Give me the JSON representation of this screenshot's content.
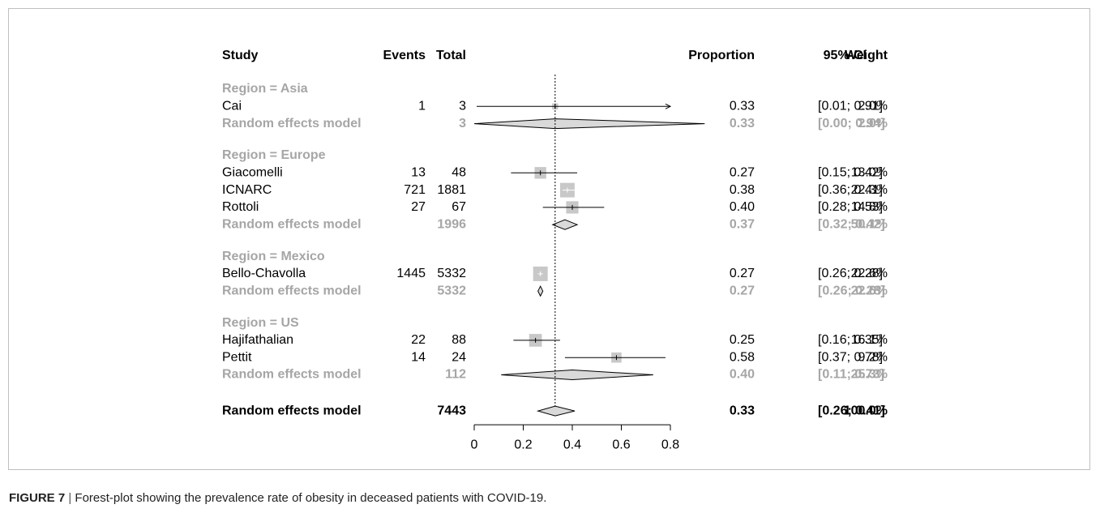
{
  "caption": {
    "figure_label": "FIGURE 7",
    "separator": " | ",
    "text": "Forest-plot showing the prevalence rate of obesity in deceased patients with COVID-19."
  },
  "chart_data": {
    "type": "forest",
    "headers": {
      "study": "Study",
      "events": "Events",
      "total": "Total",
      "proportion": "Proportion",
      "ci": "95%-CI",
      "weight": "Weight"
    },
    "xlim": [
      0,
      0.8
    ],
    "x_ticks": [
      "0",
      "0.2",
      "0.4",
      "0.6",
      "0.8"
    ],
    "reference_line": 0.33,
    "colors": {
      "study": "#000000",
      "summary": "#a6a6a6",
      "box": "#c8c8c8"
    },
    "groups": [
      {
        "label": "Region = Asia",
        "studies": [
          {
            "name": "Cai",
            "events": "1",
            "total": "3",
            "proportion": "0.33",
            "ci": "[0.01; 0.91]",
            "weight": "2.0%",
            "est": 0.33,
            "lo": 0.01,
            "hi": 0.91,
            "w": 2.0
          }
        ],
        "summary": {
          "name": "Random effects model",
          "total": "3",
          "proportion": "0.33",
          "ci": "[0.00; 0.94]",
          "weight": "2.0%",
          "est": 0.33,
          "lo": 0.0,
          "hi": 0.94
        }
      },
      {
        "label": "Region = Europe",
        "studies": [
          {
            "name": "Giacomelli",
            "events": "13",
            "total": "48",
            "proportion": "0.27",
            "ci": "[0.15; 0.42]",
            "weight": "13.0%",
            "est": 0.27,
            "lo": 0.15,
            "hi": 0.42,
            "w": 13.0
          },
          {
            "name": "ICNARC",
            "events": "721",
            "total": "1881",
            "proportion": "0.38",
            "ci": "[0.36; 0.41]",
            "weight": "22.3%",
            "est": 0.38,
            "lo": 0.36,
            "hi": 0.41,
            "w": 22.3
          },
          {
            "name": "Rottoli",
            "events": "27",
            "total": "67",
            "proportion": "0.40",
            "ci": "[0.28; 0.53]",
            "weight": "14.8%",
            "est": 0.4,
            "lo": 0.28,
            "hi": 0.53,
            "w": 14.8
          }
        ],
        "summary": {
          "name": "Random effects model",
          "total": "1996",
          "proportion": "0.37",
          "ci": "[0.32; 0.42]",
          "weight": "50.1%",
          "est": 0.37,
          "lo": 0.32,
          "hi": 0.42
        }
      },
      {
        "label": "Region = Mexico",
        "studies": [
          {
            "name": "Bello-Chavolla",
            "events": "1445",
            "total": "5332",
            "proportion": "0.27",
            "ci": "[0.26; 0.28]",
            "weight": "22.6%",
            "est": 0.27,
            "lo": 0.26,
            "hi": 0.28,
            "w": 22.6
          }
        ],
        "summary": {
          "name": "Random effects model",
          "total": "5332",
          "proportion": "0.27",
          "ci": "[0.26; 0.28]",
          "weight": "22.6%",
          "est": 0.27,
          "lo": 0.26,
          "hi": 0.28
        }
      },
      {
        "label": "Region = US",
        "studies": [
          {
            "name": "Hajifathalian",
            "events": "22",
            "total": "88",
            "proportion": "0.25",
            "ci": "[0.16; 0.35]",
            "weight": "16.1%",
            "est": 0.25,
            "lo": 0.16,
            "hi": 0.35,
            "w": 16.1
          },
          {
            "name": "Pettit",
            "events": "14",
            "total": "24",
            "proportion": "0.58",
            "ci": "[0.37; 0.78]",
            "weight": "9.2%",
            "est": 0.58,
            "lo": 0.37,
            "hi": 0.78,
            "w": 9.2
          }
        ],
        "summary": {
          "name": "Random effects model",
          "total": "112",
          "proportion": "0.40",
          "ci": "[0.11; 0.73]",
          "weight": "25.3%",
          "est": 0.4,
          "lo": 0.11,
          "hi": 0.73
        }
      }
    ],
    "overall": {
      "name": "Random effects model",
      "total": "7443",
      "proportion": "0.33",
      "ci": "[0.26; 0.41]",
      "weight": "100.0%",
      "est": 0.33,
      "lo": 0.26,
      "hi": 0.41
    }
  }
}
